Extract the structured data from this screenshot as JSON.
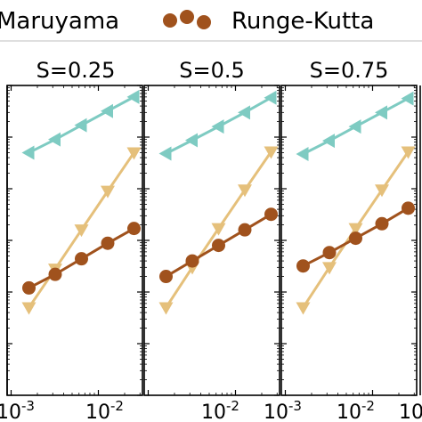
{
  "legend": {
    "entries": [
      {
        "label": "Maruyama",
        "color": "#b5bdc0",
        "marker": "none"
      },
      {
        "label": "Runge-Kutta",
        "color": "#a0521d",
        "marker": "circle"
      }
    ]
  },
  "x_tick_labels": [
    {
      "base": "10",
      "exp": "-3"
    },
    {
      "base": "10",
      "exp": "-2"
    },
    {
      "base": "10",
      "exp": "-2"
    },
    {
      "base": "10",
      "exp": "-3"
    },
    {
      "base": "10",
      "exp": "-2"
    },
    {
      "base": "10",
      "exp": "-3"
    }
  ],
  "colors": {
    "teal": "#7ecbc2",
    "yellow": "#e5c07b",
    "brown": "#a0521d"
  },
  "chart_data": [
    {
      "type": "line",
      "title": "S=0.25",
      "xscale": "log",
      "yscale": "log",
      "xlim": [
        0.0009,
        0.032
      ],
      "ylim": [
        1e-05,
        10
      ],
      "x": [
        0.0016,
        0.0032,
        0.0064,
        0.0128,
        0.0256
      ],
      "series": [
        {
          "color": "#7ecbc2",
          "marker": "triangle-left",
          "values": [
            0.5,
            0.9,
            1.7,
            3.2,
            6.0
          ]
        },
        {
          "color": "#e5c07b",
          "marker": "triangle-down",
          "values": [
            0.0005,
            0.0028,
            0.016,
            0.09,
            0.5
          ]
        },
        {
          "color": "#a0521d",
          "marker": "circle",
          "values": [
            0.0012,
            0.0022,
            0.0044,
            0.0088,
            0.017
          ]
        }
      ]
    },
    {
      "type": "line",
      "title": "S=0.5",
      "xscale": "log",
      "yscale": "log",
      "xlim": [
        0.0009,
        0.032
      ],
      "ylim": [
        1e-05,
        10
      ],
      "x": [
        0.0016,
        0.0032,
        0.0064,
        0.0128,
        0.0256
      ],
      "series": [
        {
          "color": "#7ecbc2",
          "marker": "triangle-left",
          "values": [
            0.48,
            0.87,
            1.6,
            3.0,
            5.8
          ]
        },
        {
          "color": "#e5c07b",
          "marker": "triangle-down",
          "values": [
            0.0005,
            0.003,
            0.017,
            0.095,
            0.52
          ]
        },
        {
          "color": "#a0521d",
          "marker": "circle",
          "values": [
            0.002,
            0.004,
            0.008,
            0.016,
            0.032
          ]
        }
      ]
    },
    {
      "type": "line",
      "title": "S=0.75",
      "xscale": "log",
      "yscale": "log",
      "xlim": [
        0.0009,
        0.032
      ],
      "ylim": [
        1e-05,
        10
      ],
      "x": [
        0.0016,
        0.0032,
        0.0064,
        0.0128,
        0.0256
      ],
      "series": [
        {
          "color": "#7ecbc2",
          "marker": "triangle-left",
          "values": [
            0.47,
            0.85,
            1.6,
            3.0,
            5.6
          ]
        },
        {
          "color": "#e5c07b",
          "marker": "triangle-down",
          "values": [
            0.0005,
            0.003,
            0.017,
            0.095,
            0.52
          ]
        },
        {
          "color": "#a0521d",
          "marker": "circle",
          "values": [
            0.0032,
            0.0058,
            0.011,
            0.021,
            0.042
          ]
        }
      ]
    }
  ]
}
